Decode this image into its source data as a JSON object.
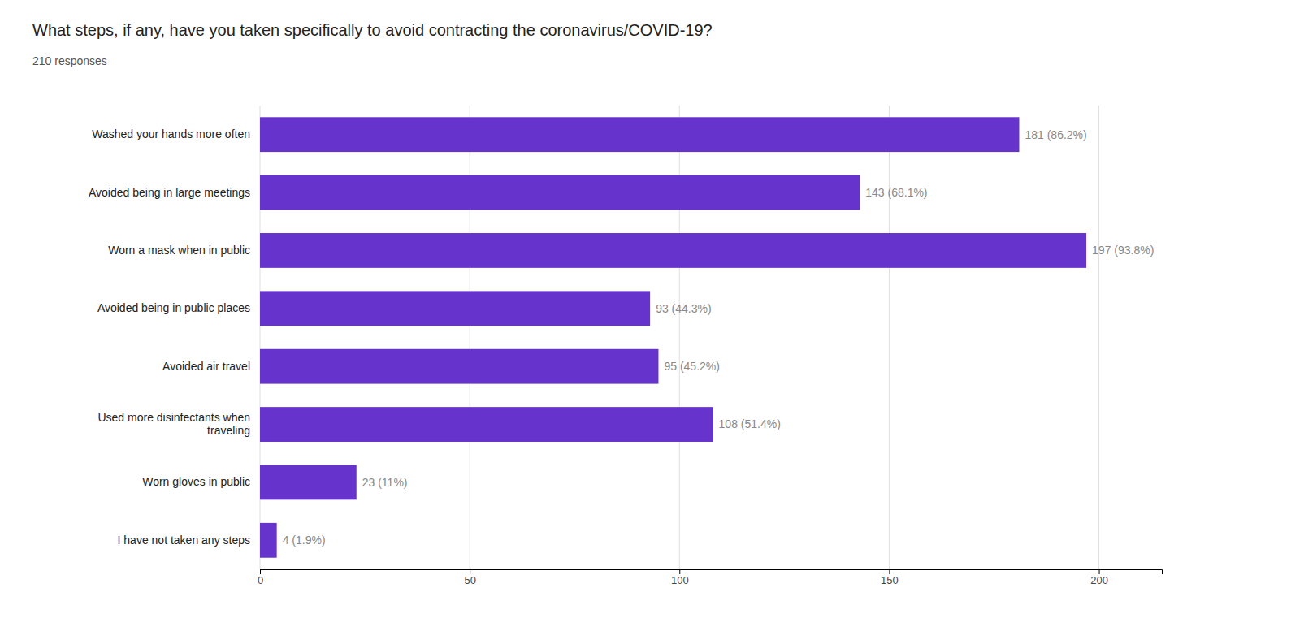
{
  "chart_data": {
    "type": "bar",
    "orientation": "horizontal",
    "title": "What steps, if any, have you taken specifically to avoid contracting the coronavirus/COVID-19?",
    "subtitle": "210 responses",
    "categories": [
      "Washed your hands more often",
      "Avoided being in large meetings",
      "Worn a mask when in public",
      "Avoided being in public places",
      "Avoided air travel",
      "Used more disinfectants when\ntraveling",
      "Worn gloves in public",
      "I have not taken any steps"
    ],
    "values": [
      181,
      143,
      197,
      93,
      95,
      108,
      23,
      4
    ],
    "value_labels": [
      "181 (86.2%)",
      "143 (68.1%)",
      "197 (93.8%)",
      "93 (44.3%)",
      "95 (45.2%)",
      "108 (51.4%)",
      "23 (11%)",
      "4 (1.9%)"
    ],
    "data_labels": true,
    "color": "#6633cc",
    "xlim": [
      0,
      215
    ],
    "xticks": [
      0,
      50,
      100,
      150,
      200
    ],
    "grid": true
  }
}
